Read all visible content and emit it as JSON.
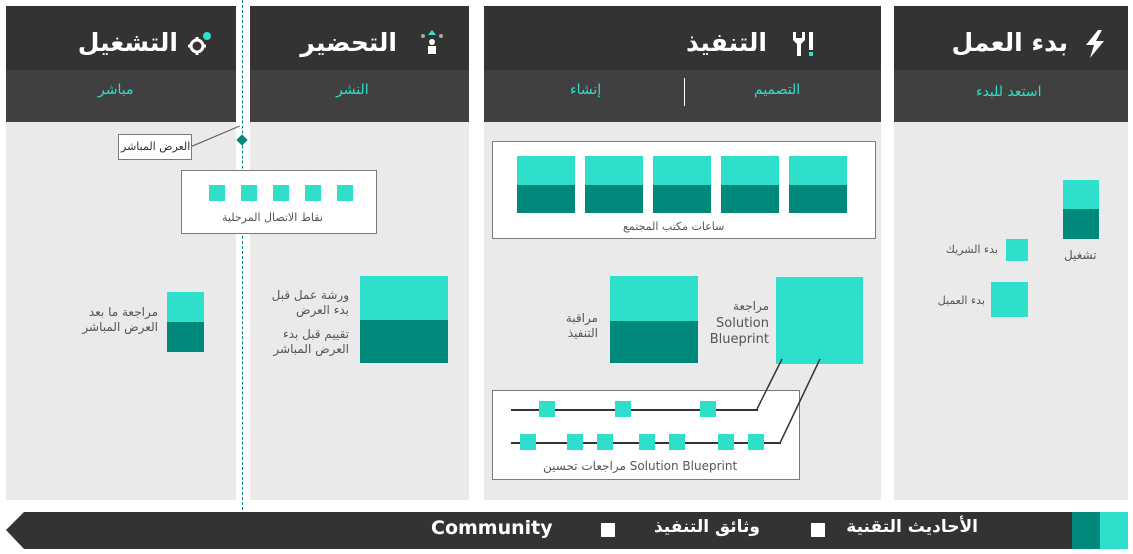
{
  "phases": {
    "start": {
      "title": "بدء العمل",
      "sub": "استعد للبدء",
      "icon": "lightning-icon"
    },
    "implement": {
      "title": "التنفيذ",
      "sub_design": "التصميم",
      "sub_build": "إنشاء",
      "icon": "tools-icon"
    },
    "prepare": {
      "title": "التحضير",
      "sub": "النشر",
      "icon": "upload-people-icon"
    },
    "operate": {
      "title": "التشغيل",
      "sub": "مباشر",
      "icon": "gears-icon"
    }
  },
  "start_col": {
    "operate_label": "تشغيل",
    "partner_label": "بدء الشريك",
    "customer_label": "بدء العميل"
  },
  "implement_col": {
    "office_hours_label": "ساعات مكتب المجتمع",
    "blueprint_review_label_1": "مراجعة",
    "blueprint_review_label_2": "Solution",
    "blueprint_review_label_3": "Blueprint",
    "monitoring_label_1": "مراقبة",
    "monitoring_label_2": "التنفيذ",
    "improvement_label": "مراجعات تحسين Solution Blueprint"
  },
  "prepare_col": {
    "workshop_label_1": "ورشة عمل قبل",
    "workshop_label_2": "بدء العرض",
    "assessment_label_1": "تقييم قبل بدء",
    "assessment_label_2": "العرض المباشر"
  },
  "operate_col": {
    "golive_label": "العرض المباشر",
    "checkpoints_label": "نقاط الاتصال المرحلية",
    "postreview_label_1": "مراجعة ما بعد",
    "postreview_label_2": "العرض المباشر"
  },
  "legend": {
    "item_1": "الأحاديث التقنية",
    "item_2": "وثائق التنفيذ",
    "item_3": "Community"
  },
  "colors": {
    "teal_light": "#2ee0cc",
    "teal_dark": "#00897b",
    "header_dark": "#333333",
    "panel": "#eaeaea"
  }
}
